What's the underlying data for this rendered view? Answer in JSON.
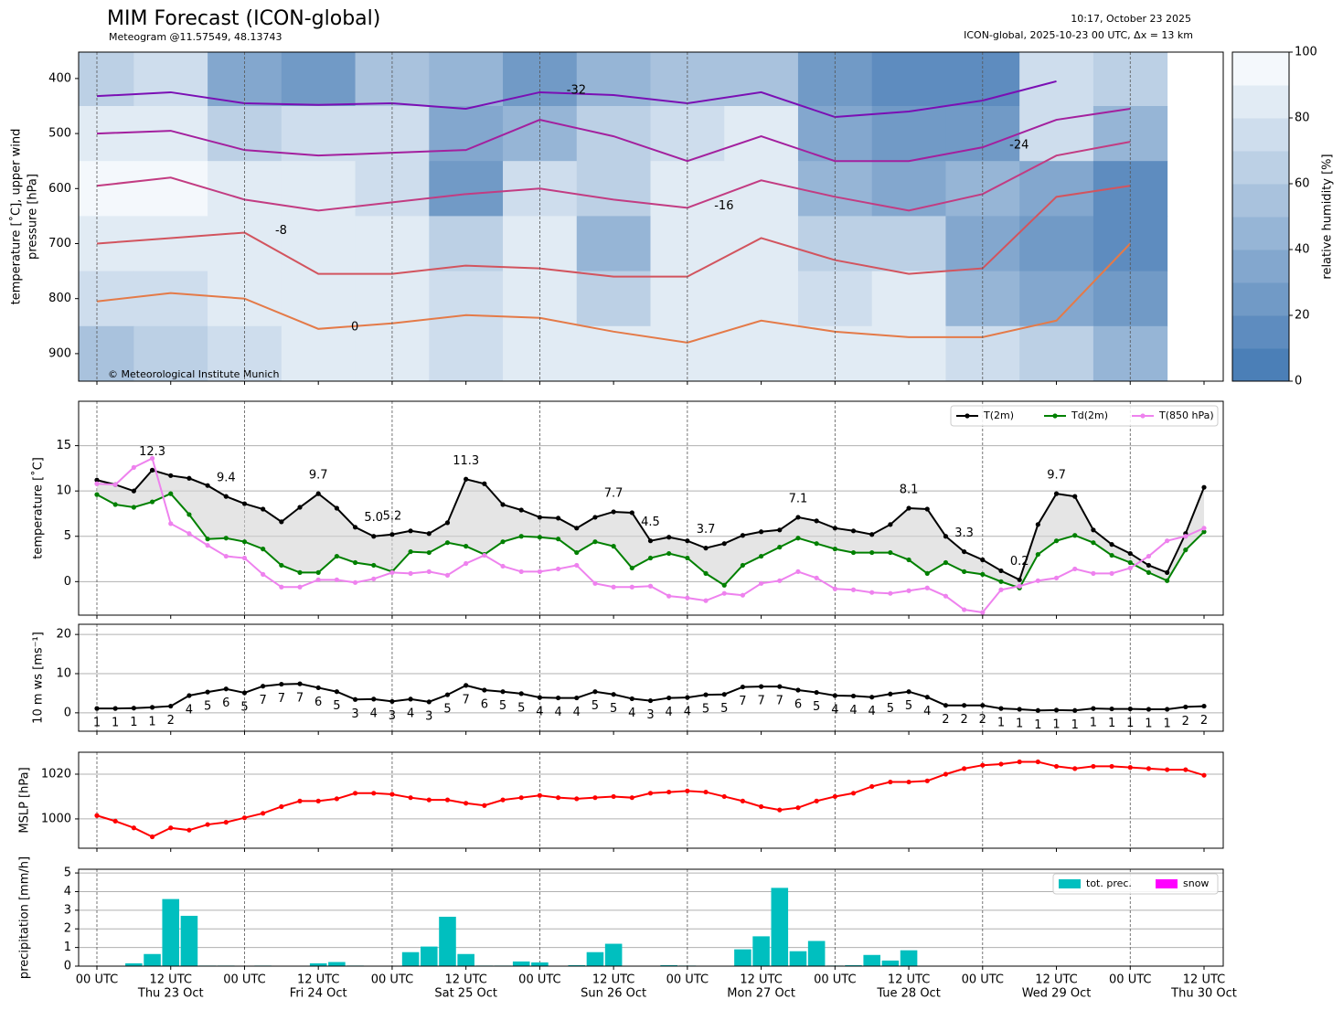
{
  "chart_data": [
    {
      "type": "contour",
      "title": "MIM Forecast (ICON-global)",
      "subtitle": "Meteogram @11.57549, 48.13743",
      "timestamp": "10:17, October 23 2025",
      "run_info": "ICON-global, 2025-10-23 00 UTC, Δx = 13 km",
      "credit": "© Meteorological Institute Munich",
      "y_label": [
        "temperature [˚C], upper wind",
        "pressure [hPa]"
      ],
      "ylim": [
        352,
        950
      ],
      "y_inverted": true,
      "yticks": [
        400,
        500,
        600,
        700,
        800,
        900
      ],
      "colorbar_label": "relative humidity [%]",
      "clim": [
        0,
        100
      ],
      "cticks": [
        0,
        20,
        40,
        60,
        80,
        100
      ],
      "levels": [
        400,
        500,
        600,
        700,
        800,
        900
      ],
      "humidity": [
        [
          60,
          70,
          30,
          25,
          50,
          40,
          25,
          40,
          50,
          50,
          20,
          15,
          15,
          75,
          60
        ],
        [
          85,
          85,
          60,
          70,
          75,
          30,
          45,
          60,
          75,
          80,
          30,
          20,
          25,
          70,
          40
        ],
        [
          90,
          90,
          80,
          85,
          75,
          25,
          70,
          65,
          85,
          85,
          45,
          35,
          40,
          35,
          15
        ],
        [
          85,
          85,
          85,
          80,
          80,
          60,
          85,
          40,
          85,
          85,
          60,
          60,
          30,
          20,
          15
        ],
        [
          70,
          75,
          80,
          80,
          85,
          75,
          80,
          65,
          80,
          85,
          70,
          80,
          45,
          30,
          25
        ],
        [
          55,
          60,
          75,
          80,
          80,
          75,
          80,
          80,
          80,
          85,
          80,
          85,
          75,
          60,
          40
        ]
      ],
      "isotherms": [
        {
          "name": "-32",
          "color": "#7a0fb4",
          "values": [
            432,
            425,
            445,
            448,
            445,
            455,
            425,
            430,
            445,
            425,
            470,
            460,
            440,
            405,
            null
          ]
        },
        {
          "name": "-24",
          "color": "#a3209e",
          "values": [
            500,
            495,
            530,
            540,
            535,
            530,
            475,
            505,
            550,
            505,
            550,
            550,
            525,
            475,
            455
          ]
        },
        {
          "name": "-16",
          "color": "#c23c82",
          "values": [
            595,
            580,
            620,
            640,
            625,
            610,
            600,
            620,
            635,
            585,
            615,
            640,
            610,
            540,
            515
          ]
        },
        {
          "name": "-8",
          "color": "#d2545e",
          "values": [
            700,
            690,
            680,
            755,
            755,
            740,
            745,
            760,
            760,
            690,
            730,
            755,
            745,
            615,
            595
          ]
        },
        {
          "name": "0",
          "color": "#e47a48",
          "values": [
            805,
            790,
            800,
            855,
            845,
            830,
            835,
            860,
            880,
            840,
            860,
            870,
            870,
            840,
            700
          ]
        }
      ]
    },
    {
      "type": "line",
      "y_label": "temperature [˚C]",
      "ylim": [
        -3.7,
        19.9
      ],
      "yticks": [
        0,
        5,
        10,
        15
      ],
      "grid": true,
      "fill_between": true,
      "legend": "upper right",
      "extremum_colors": {
        "max": "red",
        "min": "blue"
      },
      "series": [
        {
          "name": "T(2m)",
          "color": "#000000",
          "values": [
            11.2,
            10.7,
            10.0,
            12.3,
            11.7,
            11.4,
            10.6,
            9.4,
            8.6,
            8.0,
            6.6,
            8.2,
            9.7,
            8.1,
            6.0,
            5.0,
            5.2,
            5.6,
            5.3,
            6.5,
            11.3,
            10.8,
            8.5,
            7.9,
            7.1,
            7.0,
            5.9,
            7.1,
            7.7,
            7.6,
            4.5,
            4.9,
            4.5,
            3.7,
            4.2,
            5.1,
            5.5,
            5.7,
            7.1,
            6.7,
            5.9,
            5.6,
            5.2,
            6.3,
            8.1,
            8.0,
            5.0,
            3.3,
            2.4,
            1.2,
            0.2,
            6.3,
            9.7,
            9.4,
            5.7,
            4.1,
            3.1,
            1.8,
            1.0,
            5.3,
            10.4
          ],
          "value_labels": [
            null,
            null,
            null,
            "12.3",
            null,
            null,
            null,
            "9.4",
            null,
            null,
            null,
            null,
            "9.7",
            null,
            null,
            "5.0",
            "5.2",
            null,
            null,
            null,
            "11.3",
            null,
            null,
            null,
            null,
            null,
            null,
            null,
            "7.7",
            null,
            "4.5",
            null,
            null,
            "3.7",
            null,
            null,
            null,
            null,
            "7.1",
            null,
            null,
            null,
            null,
            null,
            "8.1",
            null,
            null,
            "3.3",
            null,
            null,
            "0.2",
            null,
            "9.7",
            null,
            null,
            null,
            null,
            null,
            null,
            null,
            null
          ]
        },
        {
          "name": "Td(2m)",
          "color": "#008000",
          "values": [
            9.6,
            8.5,
            8.2,
            8.8,
            9.7,
            7.4,
            4.7,
            4.8,
            4.4,
            3.6,
            1.8,
            1.0,
            1.0,
            2.8,
            2.1,
            1.8,
            1.1,
            3.3,
            3.2,
            4.3,
            3.9,
            3.0,
            4.4,
            5.0,
            4.9,
            4.7,
            3.2,
            4.4,
            3.9,
            1.5,
            2.6,
            3.1,
            2.6,
            0.9,
            -0.4,
            1.8,
            2.8,
            3.8,
            4.8,
            4.2,
            3.6,
            3.2,
            3.2,
            3.2,
            2.4,
            0.9,
            2.1,
            1.1,
            0.8,
            0.0,
            -0.7,
            3.0,
            4.5,
            5.1,
            4.3,
            2.9,
            2.1,
            1.0,
            0.1,
            3.5,
            5.5
          ]
        },
        {
          "name": "T(850 hPa)",
          "color": "#ee82ee",
          "values": [
            10.8,
            10.7,
            12.6,
            13.6,
            6.4,
            5.3,
            4.0,
            2.8,
            2.6,
            0.8,
            -0.6,
            -0.6,
            0.2,
            0.2,
            -0.1,
            0.3,
            1.0,
            0.9,
            1.1,
            0.7,
            2.0,
            2.9,
            1.7,
            1.1,
            1.1,
            1.4,
            1.8,
            -0.2,
            -0.6,
            -0.6,
            -0.5,
            -1.6,
            -1.8,
            -2.1,
            -1.3,
            -1.5,
            -0.2,
            0.1,
            1.1,
            0.4,
            -0.8,
            -0.9,
            -1.2,
            -1.3,
            -1.0,
            -0.7,
            -1.6,
            -3.1,
            -3.4,
            -0.9,
            -0.5,
            0.1,
            0.4,
            1.4,
            0.9,
            0.9,
            1.5,
            2.8,
            4.5,
            5.0,
            5.9
          ]
        }
      ]
    },
    {
      "type": "line",
      "y_label": "10 m ws [ms⁻¹]",
      "ylim": [
        -4.7,
        22.6
      ],
      "yticks": [
        0,
        10,
        20
      ],
      "grid": true,
      "series": [
        {
          "color": "#000000",
          "values": [
            1.1,
            1.1,
            1.2,
            1.4,
            1.7,
            4.4,
            5.3,
            6.1,
            5.1,
            6.8,
            7.3,
            7.4,
            6.4,
            5.4,
            3.4,
            3.5,
            2.9,
            3.5,
            2.8,
            4.6,
            7.0,
            5.8,
            5.4,
            4.9,
            3.9,
            3.8,
            3.8,
            5.4,
            4.7,
            3.6,
            3.1,
            3.8,
            3.9,
            4.6,
            4.7,
            6.6,
            6.7,
            6.7,
            5.8,
            5.2,
            4.4,
            4.3,
            4.0,
            4.8,
            5.4,
            4.0,
            1.9,
            1.9,
            1.9,
            1.1,
            0.9,
            0.6,
            0.7,
            0.6,
            1.1,
            1.0,
            1.0,
            0.9,
            0.9,
            1.5,
            1.7
          ],
          "value_labels": [
            "1",
            "1",
            "1",
            "1",
            "2",
            "4",
            "5",
            "6",
            "5",
            "7",
            "7",
            "7",
            "6",
            "5",
            "3",
            "4",
            "3",
            "4",
            "3",
            "5",
            "7",
            "6",
            "5",
            "5",
            "4",
            "4",
            "4",
            "5",
            "5",
            "4",
            "3",
            "4",
            "4",
            "5",
            "5",
            "7",
            "7",
            "7",
            "6",
            "5",
            "4",
            "4",
            "4",
            "5",
            "5",
            "4",
            "2",
            "2",
            "2",
            "1",
            "1",
            "1",
            "1",
            "1",
            "1",
            "1",
            "1",
            "1",
            "1",
            "2",
            "2"
          ]
        }
      ]
    },
    {
      "type": "line",
      "y_label": "MSLP [hPa]",
      "ylim": [
        986.9,
        1029.8
      ],
      "yticks": [
        1000,
        1020
      ],
      "grid": true,
      "series": [
        {
          "color": "#ff0000",
          "values": [
            1001.5,
            999,
            996,
            992,
            996,
            995,
            997.5,
            998.5,
            1000.5,
            1002.5,
            1005.5,
            1008,
            1008,
            1009,
            1011.5,
            1011.5,
            1011,
            1009.5,
            1008.5,
            1008.5,
            1007,
            1006,
            1008.5,
            1009.5,
            1010.5,
            1009.5,
            1009,
            1009.5,
            1010,
            1009.5,
            1011.5,
            1012,
            1012.5,
            1012,
            1010,
            1008,
            1005.5,
            1004,
            1005,
            1008,
            1010,
            1011.5,
            1014.5,
            1016.5,
            1016.5,
            1017,
            1020,
            1022.5,
            1024,
            1024.5,
            1025.5,
            1025.5,
            1023.5,
            1022.5,
            1023.5,
            1023.5,
            1023,
            1022.5,
            1022,
            1022,
            1019.5
          ]
        }
      ]
    },
    {
      "type": "bar",
      "y_label": "precipitation [mm/h]",
      "ylim": [
        0,
        5.2
      ],
      "yticks": [
        0,
        1,
        2,
        3,
        4,
        5
      ],
      "grid": true,
      "legend": "upper right",
      "categories": [
        "00 UTC",
        null,
        null,
        null,
        "12 UTC",
        null,
        null,
        null,
        "00 UTC",
        null,
        null,
        null,
        "12 UTC",
        null,
        null,
        null,
        "00 UTC",
        null,
        null,
        null,
        "12 UTC",
        null,
        null,
        null,
        "00 UTC",
        null,
        null,
        null,
        "12 UTC",
        null,
        null,
        null,
        "00 UTC",
        null,
        null,
        null,
        "12 UTC",
        null,
        null,
        null,
        "00 UTC",
        null,
        null,
        null,
        "12 UTC",
        null,
        null,
        null,
        "00 UTC",
        null,
        null,
        null,
        "12 UTC",
        null,
        null,
        null,
        "00 UTC",
        null,
        null,
        null,
        "12 UTC"
      ],
      "dates": [
        null,
        null,
        null,
        null,
        "Thu 23 Oct",
        null,
        null,
        null,
        null,
        null,
        null,
        null,
        "Fri 24 Oct",
        null,
        null,
        null,
        null,
        null,
        null,
        null,
        "Sat 25 Oct",
        null,
        null,
        null,
        null,
        null,
        null,
        null,
        "Sun 26 Oct",
        null,
        null,
        null,
        null,
        null,
        null,
        null,
        "Mon 27 Oct",
        null,
        null,
        null,
        null,
        null,
        null,
        null,
        "Tue 28 Oct",
        null,
        null,
        null,
        null,
        null,
        null,
        null,
        "Wed 29 Oct",
        null,
        null,
        null,
        null,
        null,
        null,
        null,
        "Thu 30 Oct"
      ],
      "series": [
        {
          "name": "tot. prec.",
          "color": "#00bfbf",
          "values": [
            0,
            0.02,
            0.15,
            0.65,
            3.6,
            2.7,
            0.03,
            0.03,
            0,
            0.03,
            0,
            0,
            0.15,
            0.22,
            0.03,
            0,
            0,
            0.75,
            1.05,
            2.65,
            0.65,
            0.03,
            0.03,
            0.25,
            0.2,
            0.02,
            0.05,
            0.75,
            1.2,
            0,
            0,
            0.05,
            0.03,
            0.02,
            0,
            0.9,
            1.6,
            4.2,
            0.8,
            1.35,
            0.03,
            0.05,
            0.6,
            0.3,
            0.85,
            0,
            0,
            0,
            0,
            0,
            0,
            0,
            0,
            0,
            0,
            0,
            0,
            0,
            0,
            0,
            0
          ]
        },
        {
          "name": "snow",
          "color": "#ff00ff",
          "values": [
            0,
            0,
            0,
            0,
            0,
            0,
            0,
            0,
            0,
            0,
            0,
            0,
            0,
            0,
            0,
            0,
            0,
            0,
            0,
            0,
            0,
            0,
            0,
            0,
            0,
            0,
            0,
            0,
            0,
            0,
            0,
            0,
            0,
            0,
            0,
            0,
            0,
            0,
            0,
            0,
            0,
            0,
            0,
            0,
            0,
            0,
            0,
            0,
            0,
            0,
            0,
            0,
            0,
            0,
            0,
            0,
            0,
            0,
            0,
            0,
            0
          ]
        }
      ]
    }
  ]
}
